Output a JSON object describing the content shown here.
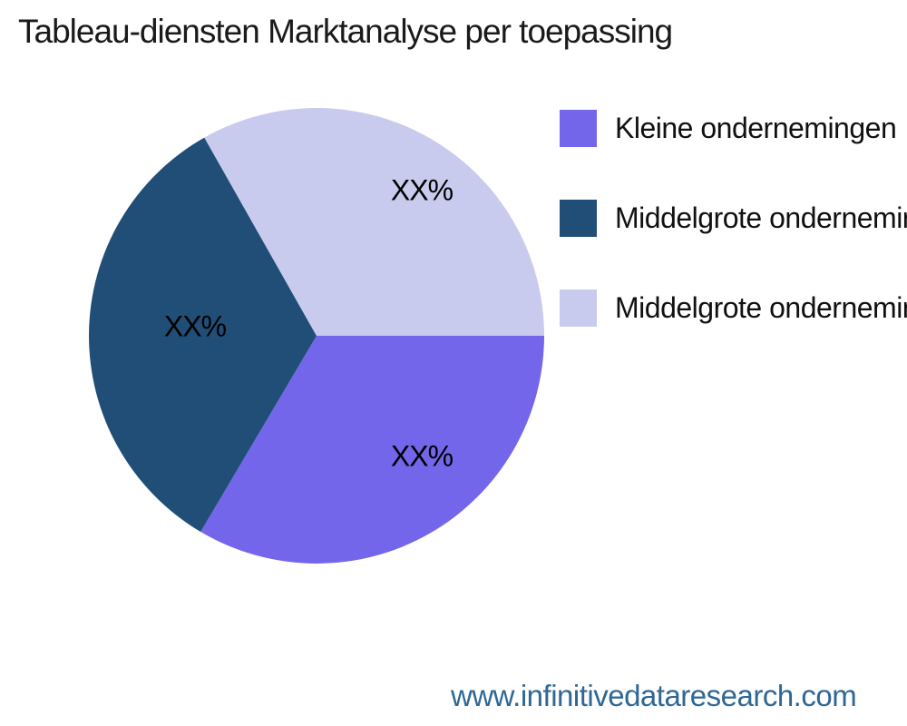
{
  "title": "Tableau-diensten Marktanalyse per toepassing",
  "footer": {
    "url": "www.infinitivedataresearch.com",
    "color": "#2F6795"
  },
  "chart_data": {
    "type": "pie",
    "title": "Tableau-diensten Marktanalyse per toepassing",
    "legend_position": "right",
    "start_angle_deg": 0,
    "direction": "clockwise",
    "background": "#ffffff",
    "slices": [
      {
        "label": "Kleine ondernemingen",
        "value_display": "XX%",
        "percent_est": 33.5,
        "color": "#7366EA"
      },
      {
        "label": "Middelgrote ondernemingen",
        "value_display": "XX%",
        "percent_est": 33.3,
        "color": "#204E76"
      },
      {
        "label": "Middelgrote ondernemingen",
        "value_display": "XX%",
        "percent_est": 33.2,
        "color": "#C9CBEE"
      }
    ]
  }
}
